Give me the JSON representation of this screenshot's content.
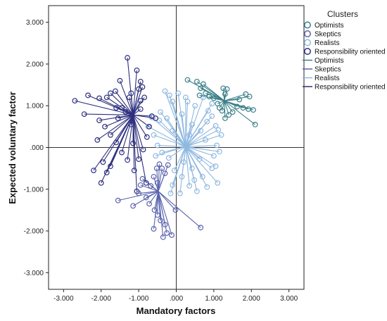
{
  "chart_data": {
    "type": "scatter",
    "subtype": "cluster-star-plot",
    "xlabel": "Mandatory factors",
    "ylabel": "Expected voluntary factor",
    "xlim": [
      -3.4,
      3.4
    ],
    "ylim": [
      -3.4,
      3.4
    ],
    "x_ticks": [
      -3,
      -2,
      -1,
      0,
      1,
      2,
      3
    ],
    "x_tick_labels": [
      "-3.000",
      "-2.000",
      "-1.000",
      ".000",
      "1.000",
      "2.000",
      "3.000"
    ],
    "y_ticks": [
      3,
      2,
      1,
      0,
      -1,
      -2,
      -3
    ],
    "y_tick_labels": [
      "3.000",
      "2.000",
      "1.000",
      ".000",
      "-1.000",
      "-2.000",
      "-3.000"
    ],
    "grid": false,
    "reference_lines": {
      "x": 0,
      "y": 0
    },
    "legend": {
      "title": "Clusters",
      "placement": "top-right",
      "marker_entries": [
        "Optimists",
        "Skeptics",
        "Realists",
        "Responsibility oriented"
      ],
      "line_entries": [
        "Optimists",
        "Skeptics",
        "Realists",
        "Responsibility oriented"
      ]
    },
    "series": [
      {
        "name": "Optimists",
        "color": "#3a7f88",
        "centroid": [
          1.28,
          1.12
        ],
        "points": [
          [
            0.55,
            1.58
          ],
          [
            0.72,
            1.52
          ],
          [
            0.65,
            1.42
          ],
          [
            0.78,
            1.3
          ],
          [
            0.62,
            1.25
          ],
          [
            0.88,
            1.22
          ],
          [
            1.25,
            1.42
          ],
          [
            1.35,
            1.4
          ],
          [
            1.3,
            1.28
          ],
          [
            1.1,
            1.05
          ],
          [
            1.15,
            0.95
          ],
          [
            1.22,
            0.88
          ],
          [
            1.4,
            0.78
          ],
          [
            1.5,
            0.85
          ],
          [
            1.62,
            0.98
          ],
          [
            1.68,
            1.15
          ],
          [
            1.85,
            1.28
          ],
          [
            1.95,
            1.22
          ],
          [
            1.92,
            0.92
          ],
          [
            2.05,
            0.9
          ],
          [
            2.1,
            0.55
          ],
          [
            0.3,
            1.62
          ],
          [
            1.0,
            1.18
          ],
          [
            1.3,
            0.7
          ],
          [
            1.78,
            0.95
          ]
        ]
      },
      {
        "name": "Skeptics",
        "color": "#5a63ad",
        "centroid": [
          -0.48,
          -1.05
        ],
        "points": [
          [
            -0.95,
            -0.9
          ],
          [
            -1.0,
            -1.1
          ],
          [
            -0.8,
            -1.2
          ],
          [
            -0.72,
            -1.35
          ],
          [
            -0.6,
            -0.7
          ],
          [
            -0.52,
            -0.5
          ],
          [
            -0.45,
            -0.4
          ],
          [
            -0.38,
            -0.5
          ],
          [
            -0.3,
            -0.62
          ],
          [
            -0.22,
            -0.42
          ],
          [
            -0.58,
            -1.5
          ],
          [
            -0.5,
            -1.62
          ],
          [
            -0.42,
            -1.75
          ],
          [
            -0.3,
            -1.85
          ],
          [
            -0.25,
            -2.05
          ],
          [
            -0.6,
            -1.95
          ],
          [
            -0.12,
            -2.1
          ],
          [
            0.65,
            -1.92
          ],
          [
            -0.02,
            -1.5
          ],
          [
            -1.55,
            -1.27
          ],
          [
            -1.15,
            -1.4
          ],
          [
            -0.35,
            -2.15
          ],
          [
            -0.68,
            -0.92
          ],
          [
            -0.9,
            -0.75
          ],
          [
            -0.5,
            -0.85
          ]
        ]
      },
      {
        "name": "Realists",
        "color": "#8fb8e0",
        "centroid": [
          0.25,
          0.02
        ],
        "points": [
          [
            -0.3,
            1.35
          ],
          [
            -0.18,
            1.25
          ],
          [
            -0.1,
            1.1
          ],
          [
            0.05,
            1.3
          ],
          [
            0.3,
            1.1
          ],
          [
            0.5,
            1.0
          ],
          [
            0.72,
            1.2
          ],
          [
            0.85,
            0.88
          ],
          [
            0.95,
            0.75
          ],
          [
            1.05,
            0.52
          ],
          [
            1.12,
            0.42
          ],
          [
            1.2,
            0.3
          ],
          [
            1.08,
            0.05
          ],
          [
            1.0,
            -0.2
          ],
          [
            0.95,
            -0.5
          ],
          [
            1.1,
            -0.85
          ],
          [
            0.82,
            -0.95
          ],
          [
            0.55,
            -1.05
          ],
          [
            0.35,
            -0.92
          ],
          [
            0.15,
            -0.7
          ],
          [
            -0.05,
            -0.55
          ],
          [
            -0.2,
            -0.25
          ],
          [
            -0.38,
            -0.12
          ],
          [
            -0.5,
            0.05
          ],
          [
            -0.6,
            0.3
          ],
          [
            -0.75,
            0.5
          ],
          [
            -0.45,
            0.65
          ],
          [
            -0.25,
            0.7
          ],
          [
            0.15,
            0.8
          ],
          [
            0.42,
            0.55
          ],
          [
            0.65,
            0.4
          ],
          [
            0.78,
            0.18
          ],
          [
            0.62,
            -0.28
          ],
          [
            0.42,
            -0.5
          ],
          [
            0.2,
            -0.35
          ],
          [
            -0.1,
            0.4
          ],
          [
            0.35,
            0.3
          ],
          [
            -0.42,
            0.85
          ],
          [
            0.25,
            1.2
          ],
          [
            0.95,
            1.05
          ],
          [
            1.05,
            -0.45
          ],
          [
            0.7,
            -0.7
          ],
          [
            -0.1,
            -0.9
          ],
          [
            -0.15,
            -1.1
          ],
          [
            0.1,
            -1.1
          ],
          [
            0.48,
            -0.78
          ],
          [
            -0.65,
            0.72
          ],
          [
            -0.55,
            -0.2
          ],
          [
            1.15,
            -0.1
          ],
          [
            0.82,
            0.62
          ]
        ]
      },
      {
        "name": "Responsibility oriented",
        "color": "#2d2f7e",
        "centroid": [
          -1.15,
          0.78
        ],
        "points": [
          [
            -1.3,
            2.15
          ],
          [
            -1.05,
            1.85
          ],
          [
            -0.95,
            1.58
          ],
          [
            -0.9,
            1.45
          ],
          [
            -1.5,
            1.6
          ],
          [
            -1.62,
            1.35
          ],
          [
            -1.75,
            1.3
          ],
          [
            -1.85,
            1.2
          ],
          [
            -2.05,
            1.18
          ],
          [
            -2.35,
            1.25
          ],
          [
            -2.7,
            1.12
          ],
          [
            -2.45,
            0.8
          ],
          [
            -2.05,
            0.65
          ],
          [
            -1.9,
            0.5
          ],
          [
            -1.75,
            0.3
          ],
          [
            -1.6,
            0.12
          ],
          [
            -1.45,
            -0.12
          ],
          [
            -1.3,
            -0.3
          ],
          [
            -1.12,
            -0.55
          ],
          [
            -1.0,
            -0.28
          ],
          [
            -0.88,
            -0.05
          ],
          [
            -0.78,
            0.25
          ],
          [
            -0.72,
            0.5
          ],
          [
            -0.65,
            0.75
          ],
          [
            -0.95,
            1.12
          ],
          [
            -1.25,
            1.2
          ],
          [
            -1.45,
            0.95
          ],
          [
            -1.2,
            0.55
          ],
          [
            -2.1,
            0.18
          ],
          [
            -1.85,
            -0.6
          ],
          [
            -1.75,
            -0.45
          ],
          [
            -1.95,
            -0.35
          ],
          [
            -2.0,
            -0.85
          ],
          [
            -1.05,
            -1.05
          ],
          [
            -1.35,
            0.85
          ],
          [
            -0.85,
            1.2
          ],
          [
            -1.55,
            0.7
          ],
          [
            -1.15,
            0.1
          ],
          [
            -0.55,
            0.7
          ],
          [
            -0.8,
            -0.85
          ],
          [
            -1.6,
            0.95
          ],
          [
            -1.0,
            1.4
          ],
          [
            -1.2,
            1.3
          ],
          [
            -2.2,
            -0.55
          ],
          [
            -0.95,
            0.92
          ]
        ]
      }
    ]
  }
}
